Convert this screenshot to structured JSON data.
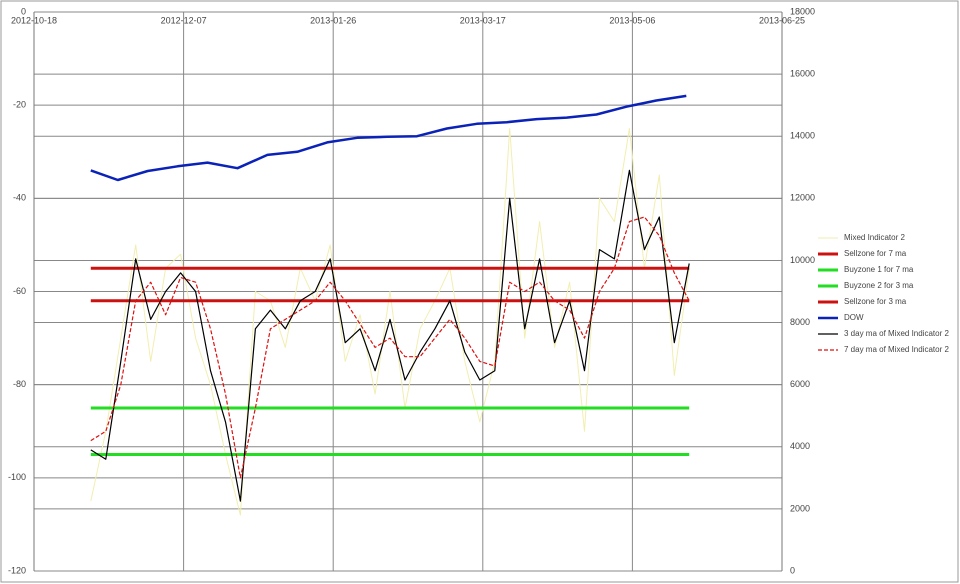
{
  "chart_data": {
    "type": "line",
    "x": [
      "2012-11-06",
      "2012-11-11",
      "2012-11-16",
      "2012-11-21",
      "2012-11-26",
      "2012-12-01",
      "2012-12-06",
      "2012-12-11",
      "2012-12-16",
      "2012-12-21",
      "2012-12-26",
      "2012-12-31",
      "2013-01-05",
      "2013-01-10",
      "2013-01-15",
      "2013-01-20",
      "2013-01-25",
      "2013-01-30",
      "2013-02-04",
      "2013-02-09",
      "2013-02-14",
      "2013-02-19",
      "2013-02-24",
      "2013-03-01",
      "2013-03-06",
      "2013-03-11",
      "2013-03-16",
      "2013-03-21",
      "2013-03-26",
      "2013-03-31",
      "2013-04-05",
      "2013-04-10",
      "2013-04-15",
      "2013-04-20",
      "2013-04-25",
      "2013-04-30",
      "2013-05-05",
      "2013-05-10",
      "2013-05-15",
      "2013-05-20",
      "2013-05-25"
    ],
    "xlim": [
      "2012-10-18",
      "2013-06-25"
    ],
    "xticks": [
      "2012-10-18",
      "2012-12-07",
      "2013-01-26",
      "2013-03-17",
      "2013-05-06",
      "2013-06-25"
    ],
    "ylim": [
      -120,
      0
    ],
    "yticks": [
      0,
      -20,
      -40,
      -60,
      -80,
      -100,
      -120
    ],
    "y2lim": [
      0,
      18000
    ],
    "y2ticks": [
      0,
      2000,
      4000,
      6000,
      8000,
      10000,
      12000,
      14000,
      16000,
      18000
    ],
    "grid": true,
    "legend": "right",
    "series": [
      {
        "name": "Mixed Indicator 2",
        "color": "#f2eeb0",
        "width": 1,
        "axis": "y",
        "values": [
          -105,
          -90,
          -70,
          -50,
          -75,
          -55,
          -52,
          -70,
          -80,
          -95,
          -108,
          -60,
          -62,
          -72,
          -55,
          -62,
          -50,
          -75,
          -65,
          -82,
          -60,
          -85,
          -68,
          -62,
          -55,
          -75,
          -88,
          -75,
          -25,
          -70,
          -45,
          -72,
          -58,
          -90,
          -40,
          -45,
          -25,
          -55,
          -35,
          -78,
          -55
        ]
      },
      {
        "name": "Sellzone for 7 ma",
        "color": "#cc1111",
        "width": 3,
        "axis": "y",
        "x": [
          "2012-11-06",
          "2013-05-25"
        ],
        "values": [
          -55,
          -55
        ]
      },
      {
        "name": "Buyzone 1 for 7 ma",
        "color": "#22dd22",
        "width": 3,
        "axis": "y",
        "x": [
          "2012-11-06",
          "2013-05-25"
        ],
        "values": [
          -85,
          -85
        ]
      },
      {
        "name": "Buyzone 2 for 3 ma",
        "color": "#22dd22",
        "width": 3,
        "axis": "y",
        "x": [
          "2012-11-06",
          "2013-05-25"
        ],
        "values": [
          -95,
          -95
        ]
      },
      {
        "name": "Sellzone for 3 ma",
        "color": "#cc1111",
        "width": 3,
        "axis": "y",
        "x": [
          "2012-11-06",
          "2013-05-25"
        ],
        "values": [
          -62,
          -62
        ]
      },
      {
        "name": "DOW",
        "color": "#0a22b8",
        "width": 2.5,
        "axis": "y2",
        "x": [
          "2012-11-06",
          "2012-11-15",
          "2012-11-25",
          "2012-12-05",
          "2012-12-15",
          "2012-12-25",
          "2013-01-04",
          "2013-01-14",
          "2013-01-24",
          "2013-02-03",
          "2013-02-13",
          "2013-02-23",
          "2013-03-05",
          "2013-03-15",
          "2013-03-25",
          "2013-04-04",
          "2013-04-14",
          "2013-04-24",
          "2013-05-04",
          "2013-05-14",
          "2013-05-24"
        ],
        "values": [
          12900,
          12590,
          12880,
          13030,
          13150,
          12970,
          13400,
          13500,
          13800,
          13950,
          13980,
          14000,
          14250,
          14400,
          14450,
          14550,
          14600,
          14700,
          14950,
          15150,
          15300
        ]
      },
      {
        "name": "3 day ma of Mixed Indicator 2",
        "color": "#000000",
        "width": 1.2,
        "axis": "y",
        "values": [
          -94,
          -96,
          -75,
          -53,
          -66,
          -60,
          -56,
          -60,
          -77,
          -88,
          -105,
          -68,
          -64,
          -68,
          -62,
          -60,
          -53,
          -71,
          -68,
          -77,
          -66,
          -79,
          -73,
          -68,
          -62,
          -73,
          -79,
          -77,
          -40,
          -68,
          -53,
          -71,
          -62,
          -77,
          -51,
          -53,
          -34,
          -51,
          -44,
          -71,
          -54
        ]
      },
      {
        "name": "7 day ma of Mixed Indicator 2",
        "color": "#dd1111",
        "width": 1.2,
        "axis": "y",
        "dashed": true,
        "values": [
          -92,
          -90,
          -80,
          -62,
          -58,
          -65,
          -57,
          -58,
          -68,
          -82,
          -100,
          -85,
          -68,
          -66,
          -64,
          -62,
          -58,
          -62,
          -67,
          -72,
          -70,
          -74,
          -74,
          -70,
          -66,
          -70,
          -75,
          -76,
          -58,
          -60,
          -58,
          -62,
          -64,
          -70,
          -60,
          -55,
          -45,
          -44,
          -48,
          -56,
          -62
        ]
      }
    ]
  }
}
